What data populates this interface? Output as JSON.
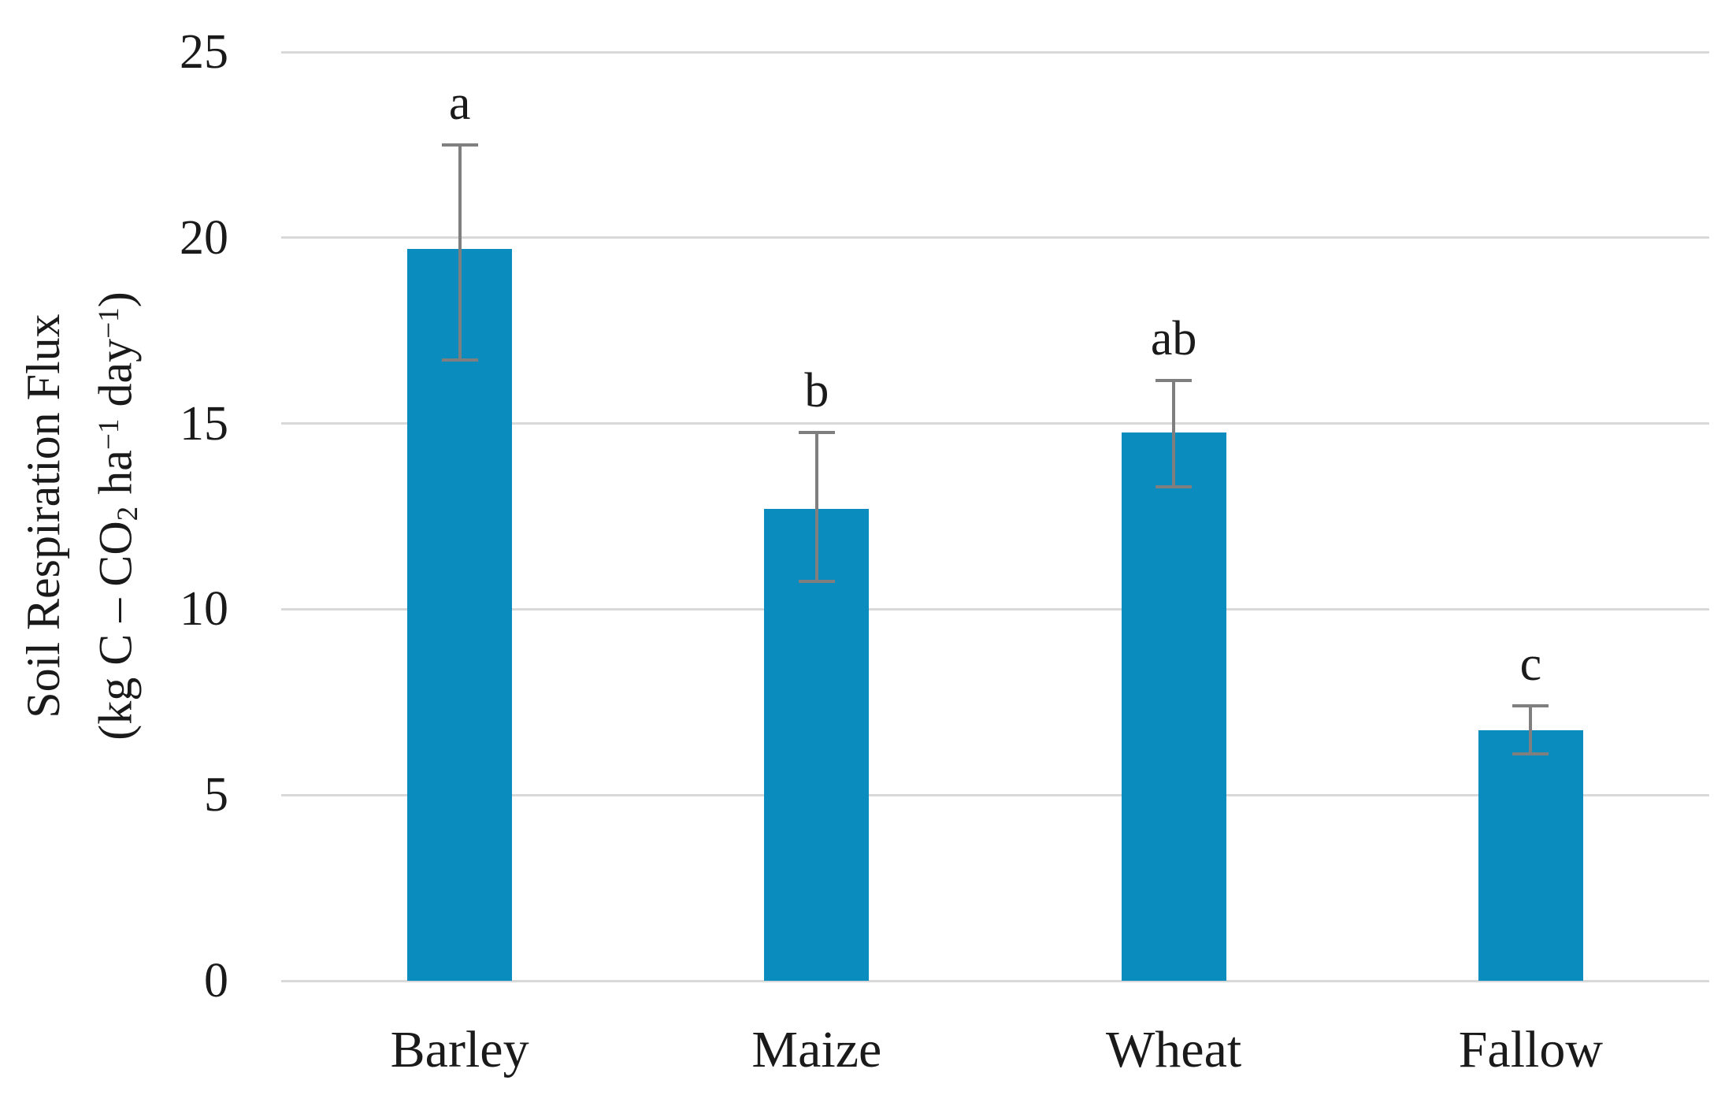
{
  "figure": {
    "background": "#FFFFFF"
  },
  "chart_data": {
    "type": "bar",
    "title": "",
    "categories": [
      "Barley",
      "Maize",
      "Wheat",
      "Fallow"
    ],
    "values": [
      19.7,
      12.7,
      14.75,
      6.75
    ],
    "error_whisker_top": [
      22.5,
      14.75,
      16.15,
      7.4
    ],
    "error_whisker_bottom": [
      16.7,
      10.75,
      13.3,
      6.1
    ],
    "significance_letters": [
      "a",
      "b",
      "ab",
      "c"
    ],
    "ylabel_line1": "Soil Respiration Flux",
    "ylabel_line2": "(kg C – CO₂ ha⁻¹ day⁻¹)",
    "xlabel": "",
    "yticks": [
      0,
      5,
      10,
      15,
      20,
      25
    ],
    "ylim": [
      0,
      25
    ],
    "grid": true,
    "legend": false,
    "bar_color": "#0A8DBE",
    "gridline_color": "#D9D9D9",
    "error_bar_color": "#7F7F7F",
    "text_color": "#1A1A1A"
  }
}
